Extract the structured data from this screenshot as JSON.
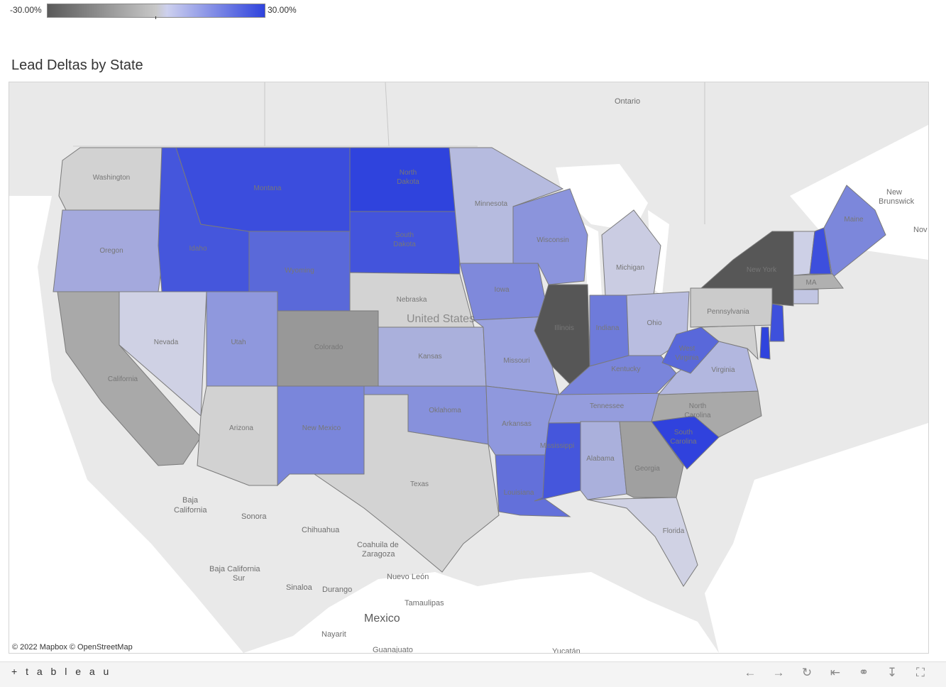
{
  "legend": {
    "min_label": "-30.00%",
    "max_label": "30.00%",
    "low_color": "#5a5a5a",
    "mid_color": "#c8c8c8",
    "high_color": "#2f43dd"
  },
  "title": "Lead Deltas by State",
  "map": {
    "countries": {
      "us": "United States",
      "mexico": "Mexico"
    },
    "regions": {
      "ontario": "Ontario",
      "new_brunswick_1": "New",
      "new_brunswick_2": "Brunswick",
      "nova": "Nov",
      "baja_california_1": "Baja",
      "baja_california_2": "California",
      "sonora": "Sonora",
      "chihuahua": "Chihuahua",
      "coahuila_1": "Coahuila de",
      "coahuila_2": "Zaragoza",
      "baja_sur_1": "Baja California",
      "baja_sur_2": "Sur",
      "nuevo_leon": "Nuevo León",
      "sinaloa": "Sinaloa",
      "durango": "Durango",
      "tamaulipas": "Tamaulipas",
      "nayarit": "Nayarit",
      "guanajuato": "Guanajuato",
      "yucatan": "Yucatán"
    },
    "states": {
      "washington": "Washington",
      "oregon": "Oregon",
      "california": "California",
      "nevada": "Nevada",
      "idaho": "Idaho",
      "montana": "Montana",
      "wyoming": "Wyoming",
      "utah": "Utah",
      "arizona": "Arizona",
      "colorado": "Colorado",
      "new_mexico": "New Mexico",
      "north_dakota_1": "North",
      "north_dakota_2": "Dakota",
      "south_dakota_1": "South",
      "south_dakota_2": "Dakota",
      "nebraska": "Nebraska",
      "kansas": "Kansas",
      "oklahoma": "Oklahoma",
      "texas": "Texas",
      "minnesota": "Minnesota",
      "iowa": "Iowa",
      "missouri": "Missouri",
      "arkansas": "Arkansas",
      "louisiana": "Louisiana",
      "wisconsin": "Wisconsin",
      "illinois": "Illinois",
      "michigan": "Michigan",
      "indiana": "Indiana",
      "ohio": "Ohio",
      "kentucky": "Kentucky",
      "tennessee": "Tennessee",
      "mississippi": "Mississippi",
      "alabama": "Alabama",
      "georgia": "Georgia",
      "florida": "Florida",
      "south_carolina_1": "South",
      "south_carolina_2": "Carolina",
      "north_carolina_1": "North",
      "north_carolina_2": "Carolina",
      "virginia": "Virginia",
      "west_virginia_1": "West",
      "west_virginia_2": "Virginia",
      "pennsylvania": "Pennsylvania",
      "new_york": "New York",
      "maine": "Maine",
      "massachusetts": "MA"
    },
    "state_colors": {
      "washington": "#d2d2d2",
      "oregon": "#a4a9dd",
      "california": "#a9a9a9",
      "nevada": "#cfd1e4",
      "idaho": "#4556dc",
      "montana": "#3b4ddd",
      "wyoming": "#5a69d9",
      "utah": "#8f98dd",
      "arizona": "#d2d2d2",
      "colorado": "#989898",
      "new_mexico": "#7a86db",
      "north_dakota": "#2f43dd",
      "south_dakota": "#4354dc",
      "nebraska": "#d3d3d3",
      "kansas": "#aab0dc",
      "oklahoma": "#8791dc",
      "texas": "#d3d3d3",
      "minnesota": "#b6bbdf",
      "iowa": "#7f89db",
      "missouri": "#9aa2de",
      "arkansas": "#8f98dd",
      "louisiana": "#6370da",
      "wisconsin": "#8b94dc",
      "illinois": "#565656",
      "michigan": "#cacce2",
      "indiana": "#6e7bda",
      "ohio": "#b9bde0",
      "kentucky": "#7a85db",
      "tennessee": "#959ddd",
      "mississippi": "#4556dc",
      "alabama": "#aab0dc",
      "georgia": "#a0a0a0",
      "florida": "#d0d2e4",
      "south_carolina": "#3042dd",
      "north_carolina": "#a9a9a9",
      "virginia": "#b2b7df",
      "west_virginia": "#5968da",
      "pennsylvania": "#cbcbcb",
      "new_york": "#575757",
      "vermont": "#cdd0e6",
      "new_hampshire": "#3d4fdd",
      "maine": "#7c87db",
      "massachusetts": "#b0b0b0",
      "connecticut": "#c2c6e3",
      "new_jersey": "#3e50dc",
      "delaware": "#2f43dd",
      "maryland": "#cfcfcf"
    },
    "attribution": "© 2022 Mapbox  © OpenStreetMap"
  },
  "footer": {
    "brand": "+ t a b l e a u",
    "icons": [
      "undo-icon",
      "redo-icon",
      "revert-icon",
      "pause-icon",
      "share-icon",
      "download-icon",
      "fullscreen-icon"
    ]
  }
}
